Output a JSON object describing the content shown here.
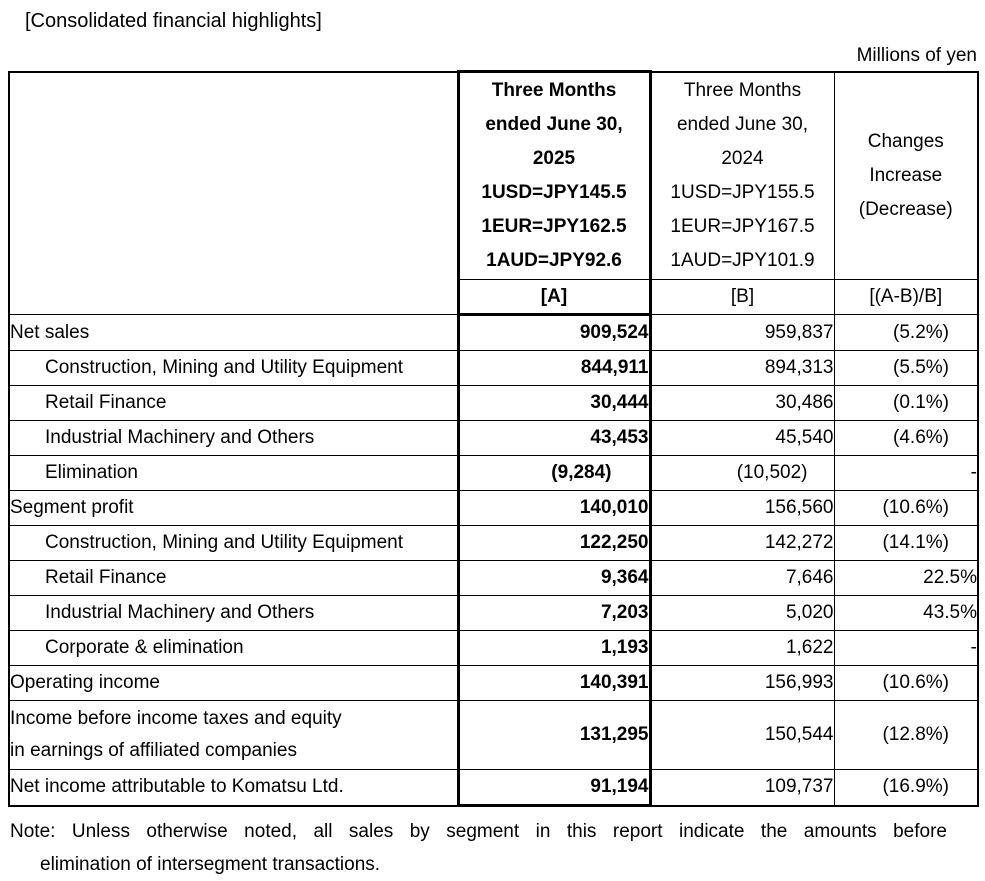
{
  "title": "[Consolidated financial highlights]",
  "unit_label": "Millions of yen",
  "table": {
    "header": {
      "col_a_lines": [
        "Three Months",
        "ended June 30,",
        "2025",
        "1USD=JPY145.5",
        "1EUR=JPY162.5",
        "1AUD=JPY92.6"
      ],
      "col_b_lines": [
        "Three Months",
        "ended June 30,",
        "2024",
        "1USD=JPY155.5",
        "1EUR=JPY167.5",
        "1AUD=JPY101.9"
      ],
      "col_c_lines": [
        "Changes",
        "Increase",
        "(Decrease)"
      ],
      "a_tag": "[A]",
      "b_tag": "[B]",
      "c_tag": "[(A-B)/B]"
    },
    "rows": [
      {
        "label": "Net sales",
        "indent": false,
        "a": "909,524",
        "b": "959,837",
        "c": "(5.2%)"
      },
      {
        "label": "Construction, Mining and Utility Equipment",
        "indent": true,
        "a": "844,911",
        "b": "894,313",
        "c": "(5.5%)"
      },
      {
        "label": "Retail Finance",
        "indent": true,
        "a": "30,444",
        "b": "30,486",
        "c": "(0.1%)"
      },
      {
        "label": "Industrial Machinery and Others",
        "indent": true,
        "a": "43,453",
        "b": "45,540",
        "c": "(4.6%)"
      },
      {
        "label": "Elimination",
        "indent": true,
        "a": "(9,284)",
        "b": "(10,502)",
        "c": "-"
      },
      {
        "label": "Segment profit",
        "indent": false,
        "a": "140,010",
        "b": "156,560",
        "c": "(10.6%)"
      },
      {
        "label": "Construction, Mining and Utility Equipment",
        "indent": true,
        "a": "122,250",
        "b": "142,272",
        "c": "(14.1%)"
      },
      {
        "label": "Retail Finance",
        "indent": true,
        "a": "9,364",
        "b": "7,646",
        "c": "22.5%"
      },
      {
        "label": "Industrial Machinery and Others",
        "indent": true,
        "a": "7,203",
        "b": "5,020",
        "c": "43.5%"
      },
      {
        "label": "Corporate & elimination",
        "indent": true,
        "a": "1,193",
        "b": "1,622",
        "c": "-"
      },
      {
        "label": "Operating income",
        "indent": false,
        "a": "140,391",
        "b": "156,993",
        "c": "(10.6%)"
      },
      {
        "label": "Income before income taxes and equity",
        "label2": "in earnings of affiliated companies",
        "indent": false,
        "a": "131,295",
        "b": "150,544",
        "c": "(12.8%)"
      },
      {
        "label": "Net income attributable to Komatsu Ltd.",
        "indent": false,
        "a": "91,194",
        "b": "109,737",
        "c": "(16.9%)"
      }
    ]
  },
  "note": {
    "line1": "Note: Unless otherwise noted, all sales by segment in this report indicate the amounts before",
    "line2": "elimination of intersegment transactions."
  }
}
